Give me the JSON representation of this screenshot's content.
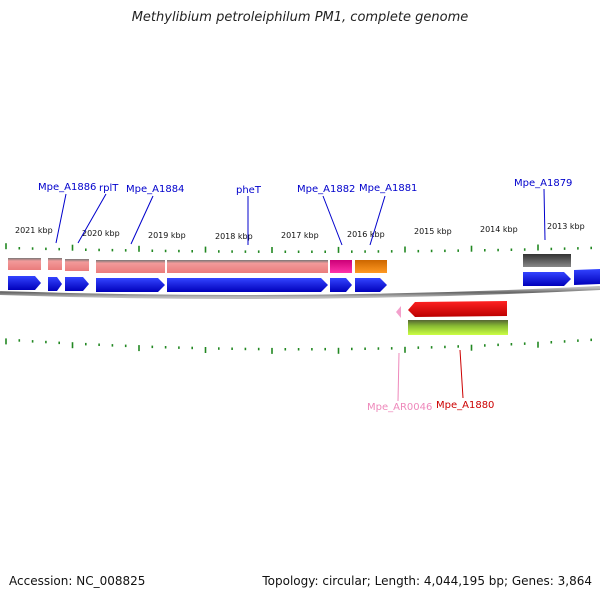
{
  "title": "Methylibium petroleiphilum PM1, complete genome",
  "footer": {
    "accession": "Accession: NC_008825",
    "summary": "Topology: circular; Length: 4,044,195 bp; Genes: 3,864"
  },
  "ticks": [
    "2021 kbp",
    "2020 kbp",
    "2019 kbp",
    "2018 kbp",
    "2017 kbp",
    "2016 kbp",
    "2015 kbp",
    "2014 kbp",
    "2013 kbp"
  ],
  "gene_labels": [
    {
      "id": "mpe-a1886",
      "text": "Mpe_A1886",
      "color": "#0000cc"
    },
    {
      "id": "rplt",
      "text": "rplT",
      "color": "#0000cc"
    },
    {
      "id": "mpe-a1884",
      "text": "Mpe_A1884",
      "color": "#0000cc"
    },
    {
      "id": "phet",
      "text": "pheT",
      "color": "#0000cc"
    },
    {
      "id": "mpe-a1882",
      "text": "Mpe_A1882",
      "color": "#0000cc"
    },
    {
      "id": "mpe-a1881",
      "text": "Mpe_A1881",
      "color": "#0000cc"
    },
    {
      "id": "mpe-a1879",
      "text": "Mpe_A1879",
      "color": "#0000cc"
    },
    {
      "id": "mpe-ar0046",
      "text": "Mpe_AR0046",
      "color": "#ee88bb"
    },
    {
      "id": "mpe-a1880",
      "text": "Mpe_A1880",
      "color": "#cc0000"
    }
  ],
  "colors": {
    "forward_cds": "#0000ee",
    "salmon": "#ee8888",
    "magenta": "#ee1199",
    "orange": "#ff8800",
    "grey": "#555555",
    "red": "#ee0000",
    "green": "#66aa22",
    "tick_green": "#228822",
    "backbone": "#888888"
  }
}
